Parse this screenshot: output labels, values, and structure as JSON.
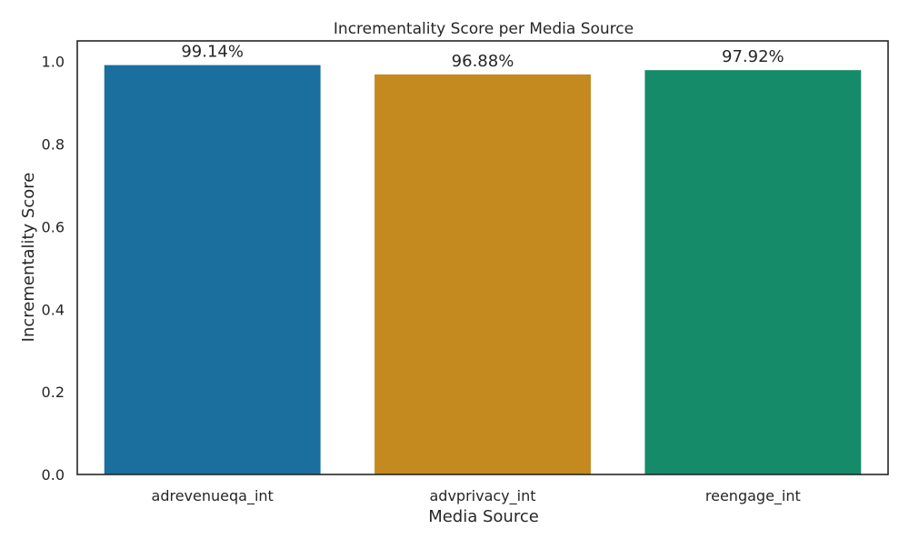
{
  "chart_data": {
    "type": "bar",
    "title": "Incrementality Score per Media Source",
    "xlabel": "Media Source",
    "ylabel": "Incrementality Score",
    "categories": [
      "adrevenueqa_int",
      "advprivacy_int",
      "reengage_int"
    ],
    "values": [
      0.9914,
      0.9688,
      0.9792
    ],
    "data_labels": [
      "99.14%",
      "96.88%",
      "97.92%"
    ],
    "colors": [
      "#1a6f9f",
      "#c4891f",
      "#168b6a"
    ],
    "ylim": [
      0,
      1.05
    ],
    "yticks": [
      0.0,
      0.2,
      0.4,
      0.6,
      0.8,
      1.0
    ],
    "ytick_labels": [
      "0.0",
      "0.2",
      "0.4",
      "0.6",
      "0.8",
      "1.0"
    ],
    "grid": false,
    "legend": "none"
  }
}
